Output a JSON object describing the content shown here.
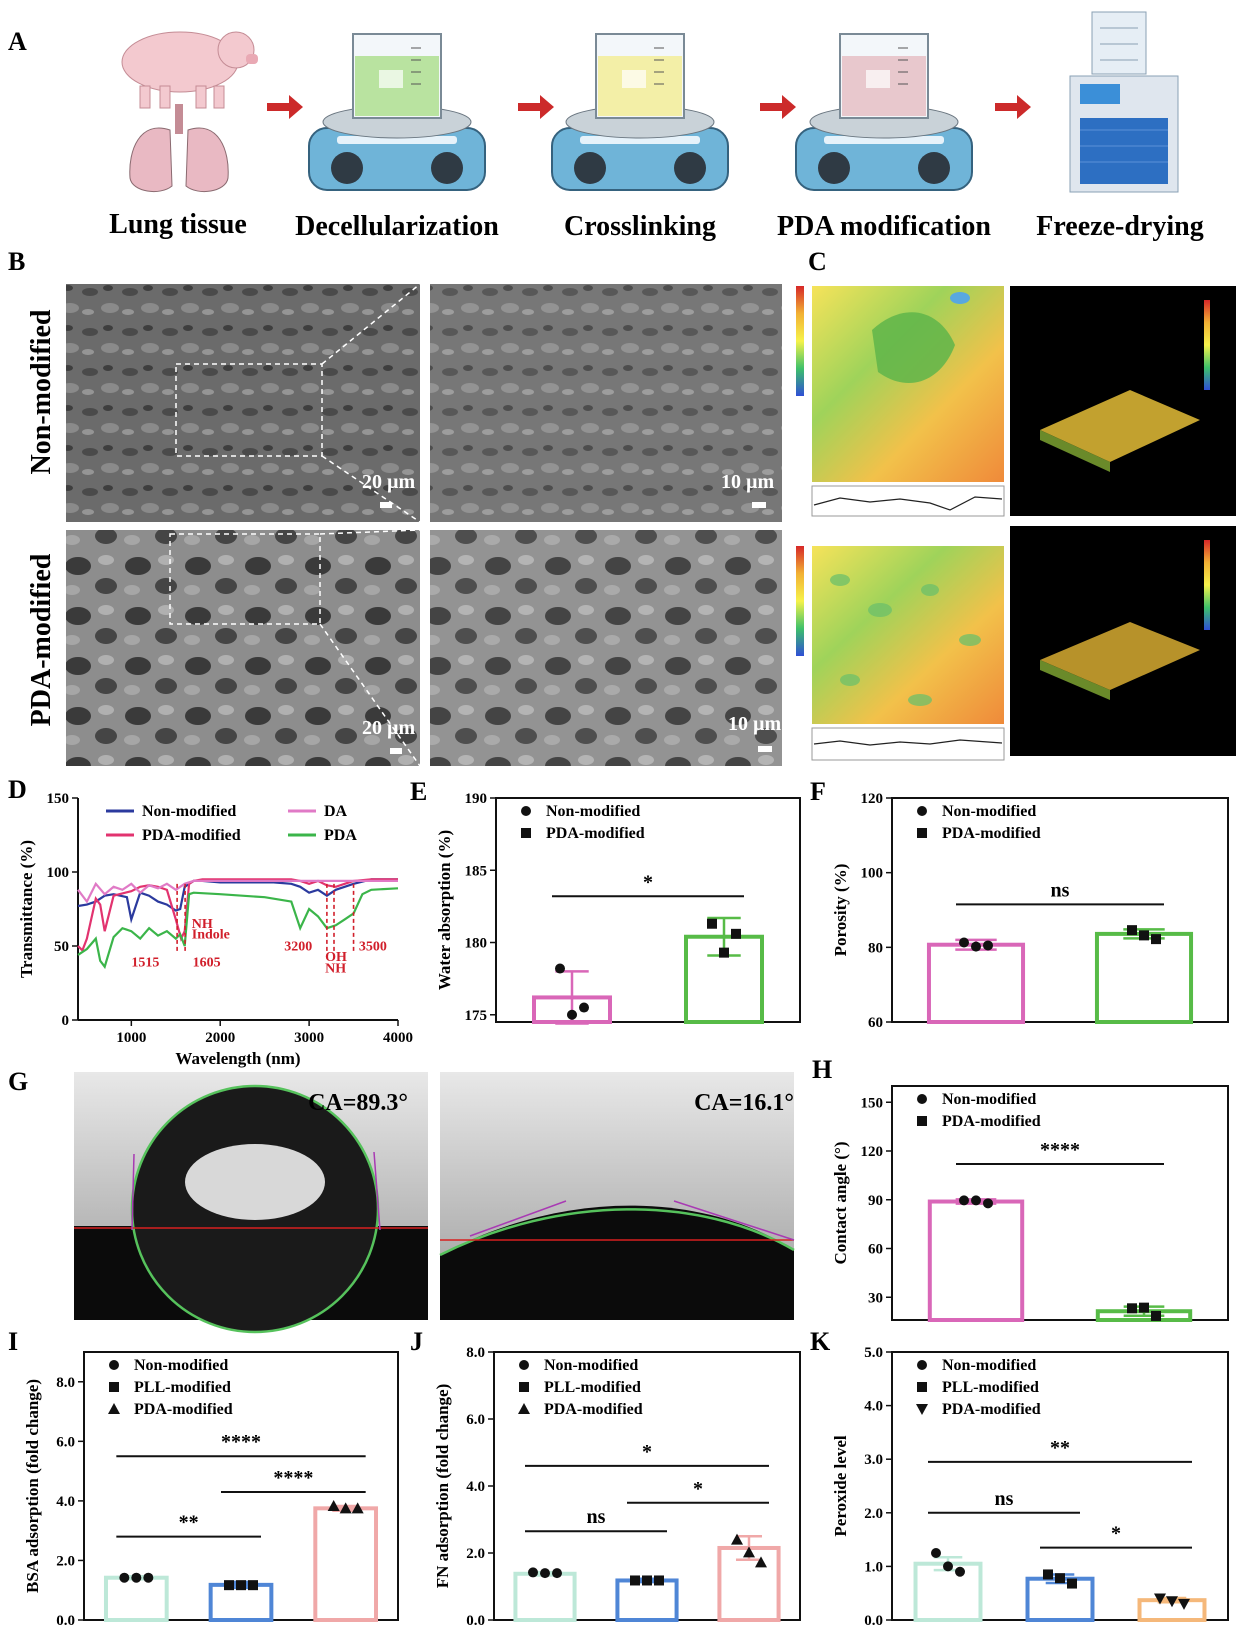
{
  "panel_labels": [
    "A",
    "B",
    "C",
    "D",
    "E",
    "F",
    "G",
    "H",
    "I",
    "J",
    "K"
  ],
  "workflow": {
    "steps": [
      "Lung tissue",
      "Decellularization",
      "Crosslinking",
      "PDA modification",
      "Freeze-drying"
    ],
    "liquid_colors": [
      "#b9e3a0",
      "#f3efa7",
      "#e8c8cd"
    ]
  },
  "sem": {
    "row_labels": [
      "Non-modified",
      "PDA-modified"
    ],
    "scalebars": [
      "20 µm",
      "10 µm",
      "20 µm",
      "10 µm"
    ]
  },
  "contact": {
    "non_label": "CA=89.3°",
    "pda_label": "CA=16.1°"
  },
  "chart_data": [
    {
      "id": "D",
      "type": "line",
      "xlabel": "Wavelength (nm)",
      "ylabel": "Transmittance (%)",
      "xlim": [
        400,
        4000
      ],
      "ylim": [
        0,
        150
      ],
      "xticks": [
        1000,
        2000,
        3000,
        4000
      ],
      "yticks": [
        0,
        50,
        100,
        150
      ],
      "legend": [
        "Non-modified",
        "PDA-modified",
        "DA",
        "PDA"
      ],
      "annotations": [
        "NH",
        "Indole",
        "1515",
        "1605",
        "3200",
        "OH",
        "NH",
        "3500"
      ],
      "marker_lines": [
        1515,
        1605,
        3200,
        3280,
        3500
      ],
      "series": [
        {
          "name": "Non-modified",
          "color": "#2b3a9e",
          "x": [
            400,
            500,
            600,
            700,
            800,
            950,
            1000,
            1100,
            1200,
            1300,
            1400,
            1500,
            1550,
            1600,
            1650,
            1700,
            1800,
            2000,
            2200,
            2400,
            2600,
            2800,
            2900,
            3000,
            3100,
            3200,
            3300,
            3400,
            3500,
            3700,
            4000
          ],
          "y": [
            77,
            78,
            80,
            84,
            85,
            83,
            68,
            86,
            84,
            80,
            78,
            74,
            75,
            90,
            92,
            94,
            94,
            93,
            93,
            93,
            93,
            92,
            90,
            86,
            88,
            84,
            88,
            90,
            92,
            95,
            95
          ]
        },
        {
          "name": "PDA-modified",
          "color": "#e2336f",
          "x": [
            400,
            450,
            500,
            600,
            650,
            700,
            800,
            1000,
            1100,
            1200,
            1300,
            1400,
            1500,
            1560,
            1600,
            1650,
            1700,
            1800,
            2000,
            2500,
            2800,
            2900,
            3000,
            3100,
            3200,
            3300,
            3400,
            3500,
            3700,
            4000
          ],
          "y": [
            50,
            47,
            55,
            82,
            78,
            60,
            84,
            87,
            90,
            91,
            90,
            88,
            68,
            55,
            60,
            92,
            94,
            95,
            95,
            95,
            95,
            94,
            92,
            94,
            91,
            90,
            92,
            94,
            95,
            95
          ]
        },
        {
          "name": "DA",
          "color": "#e07ac6",
          "x": [
            400,
            500,
            600,
            700,
            800,
            900,
            1000,
            1100,
            1200,
            1300,
            1400,
            1500,
            1600,
            1700,
            1800,
            2000,
            2500,
            3000,
            4000
          ],
          "y": [
            88,
            80,
            92,
            85,
            90,
            88,
            92,
            86,
            91,
            89,
            92,
            88,
            92,
            94,
            94,
            94,
            94,
            94,
            94
          ]
        },
        {
          "name": "PDA",
          "color": "#3bb54a",
          "x": [
            400,
            500,
            600,
            650,
            700,
            800,
            900,
            1000,
            1100,
            1200,
            1300,
            1400,
            1500,
            1550,
            1600,
            1650,
            1700,
            2000,
            2500,
            2800,
            2900,
            3000,
            3100,
            3200,
            3300,
            3400,
            3500,
            3600,
            3700,
            4000
          ],
          "y": [
            44,
            48,
            55,
            40,
            36,
            56,
            62,
            60,
            55,
            62,
            57,
            60,
            55,
            58,
            50,
            85,
            86,
            85,
            83,
            80,
            62,
            75,
            70,
            62,
            64,
            68,
            72,
            85,
            88,
            89
          ]
        }
      ]
    },
    {
      "id": "E",
      "type": "bar",
      "ylabel": "Water absorption (%)",
      "ylim": [
        174.5,
        190
      ],
      "yticks": [
        175,
        180,
        185,
        190
      ],
      "legend": [
        "Non-modified",
        "PDA-modified"
      ],
      "categories": [
        "Non-modified",
        "PDA-modified"
      ],
      "values": [
        176.2,
        180.4
      ],
      "errors": [
        1.8,
        1.3
      ],
      "points": [
        [
          178.2,
          175.0,
          175.5
        ],
        [
          181.3,
          179.3,
          180.6
        ]
      ],
      "colors": [
        "#d967b8",
        "#57bb47"
      ],
      "significance": [
        {
          "pair": [
            0,
            1
          ],
          "label": "*",
          "y": 183.2
        }
      ]
    },
    {
      "id": "F",
      "type": "bar",
      "ylabel": "Porosity (%)",
      "ylim": [
        60,
        120
      ],
      "yticks": [
        60,
        80,
        100,
        120
      ],
      "legend": [
        "Non-modified",
        "PDA-modified"
      ],
      "categories": [
        "Non-modified",
        "PDA-modified"
      ],
      "values": [
        80.7,
        83.6
      ],
      "errors": [
        1.3,
        1.2
      ],
      "points": [
        [
          81.3,
          80.2,
          80.5
        ],
        [
          84.6,
          83.2,
          82.2
        ]
      ],
      "colors": [
        "#d967b8",
        "#57bb47"
      ],
      "significance": [
        {
          "pair": [
            0,
            1
          ],
          "label": "ns",
          "y": 91.5
        }
      ]
    },
    {
      "id": "H",
      "type": "bar",
      "ylabel": "Contact angle (°)",
      "ylim": [
        16,
        160
      ],
      "yticks": [
        30,
        60,
        90,
        120,
        150
      ],
      "legend": [
        "Non-modified",
        "PDA-modified"
      ],
      "categories": [
        "Non-modified",
        "PDA-modified"
      ],
      "values": [
        88.9,
        21.4
      ],
      "errors": [
        1.3,
        2.8
      ],
      "points": [
        [
          89.6,
          89.6,
          87.8
        ],
        [
          23.2,
          23.6,
          18.5
        ]
      ],
      "colors": [
        "#d967b8",
        "#57bb47"
      ],
      "significance": [
        {
          "pair": [
            0,
            1
          ],
          "label": "****",
          "y": 112
        }
      ]
    },
    {
      "id": "I",
      "type": "bar",
      "ylabel": "BSA adsorption (fold change)",
      "ylim": [
        0,
        9
      ],
      "yticks": [
        0.0,
        2.0,
        4.0,
        6.0,
        8.0
      ],
      "legend": [
        "Non-modified",
        "PLL-modified",
        "PDA-modified"
      ],
      "categories": [
        "Non-modified",
        "PLL-modified",
        "PDA-modified"
      ],
      "values": [
        1.42,
        1.18,
        3.75
      ],
      "errors": [
        0.05,
        0.1,
        0.08
      ],
      "points": [
        [
          1.42,
          1.42,
          1.42
        ],
        [
          1.17,
          1.17,
          1.17
        ],
        [
          3.83,
          3.75,
          3.75
        ]
      ],
      "colors": [
        "#bde8d8",
        "#4f86d6",
        "#f0a8a8"
      ],
      "significance": [
        {
          "pair": [
            0,
            1
          ],
          "label": "**",
          "y": 2.8
        },
        {
          "pair": [
            1,
            2
          ],
          "label": "****",
          "y": 4.3
        },
        {
          "pair": [
            0,
            2
          ],
          "label": "****",
          "y": 5.5
        }
      ]
    },
    {
      "id": "J",
      "type": "bar",
      "ylabel": "FN adsorption (fold change)",
      "ylim": [
        0,
        8
      ],
      "yticks": [
        0.0,
        2.0,
        4.0,
        6.0,
        8.0
      ],
      "legend": [
        "Non-modified",
        "PLL-modified",
        "PDA-modified"
      ],
      "categories": [
        "Non-modified",
        "PLL-modified",
        "PDA-modified"
      ],
      "values": [
        1.38,
        1.18,
        2.15
      ],
      "errors": [
        0.05,
        0.05,
        0.35
      ],
      "points": [
        [
          1.42,
          1.4,
          1.4
        ],
        [
          1.18,
          1.18,
          1.18
        ],
        [
          2.4,
          2.02,
          1.72
        ]
      ],
      "colors": [
        "#bde8d8",
        "#4f86d6",
        "#f0a8a8"
      ],
      "significance": [
        {
          "pair": [
            0,
            1
          ],
          "label": "ns",
          "y": 2.65
        },
        {
          "pair": [
            1,
            2
          ],
          "label": "*",
          "y": 3.5
        },
        {
          "pair": [
            0,
            2
          ],
          "label": "*",
          "y": 4.6
        }
      ]
    },
    {
      "id": "K",
      "type": "bar",
      "ylabel": "Peroxide level",
      "ylim": [
        0,
        5
      ],
      "yticks": [
        0.0,
        1.0,
        2.0,
        3.0,
        4.0,
        5.0
      ],
      "legend": [
        "Non-modified",
        "PLL-modified",
        "PDA-modified"
      ],
      "categories": [
        "Non-modified",
        "PLL-modified",
        "PDA-modified"
      ],
      "values": [
        1.05,
        0.77,
        0.37
      ],
      "errors": [
        0.12,
        0.08,
        0.04
      ],
      "points": [
        [
          1.25,
          1.0,
          0.9
        ],
        [
          0.85,
          0.78,
          0.68
        ],
        [
          0.4,
          0.35,
          0.3
        ]
      ],
      "colors": [
        "#bde8d8",
        "#4f86d6",
        "#f5b87a"
      ],
      "significance": [
        {
          "pair": [
            0,
            1
          ],
          "label": "ns",
          "y": 2.0
        },
        {
          "pair": [
            1,
            2
          ],
          "label": "*",
          "y": 1.35
        },
        {
          "pair": [
            0,
            2
          ],
          "label": "**",
          "y": 2.95
        }
      ]
    }
  ]
}
